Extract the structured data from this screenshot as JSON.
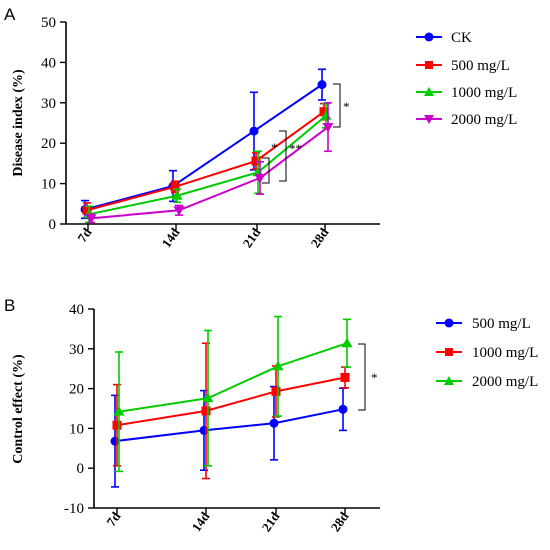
{
  "chart_data": [
    {
      "panel": "A",
      "type": "line",
      "ylabel": "Disease index (%)",
      "xlabel": "",
      "categories": [
        "7d",
        "14d",
        "21d",
        "28d"
      ],
      "ylim": [
        0,
        50
      ],
      "yticks": [
        0,
        10,
        20,
        30,
        40,
        50
      ],
      "grid": false,
      "legend_position": "right",
      "series": [
        {
          "name": "CK",
          "color": "#0000ff",
          "marker": "circle",
          "values": [
            3.6,
            9.4,
            23.0,
            34.5
          ],
          "errors": [
            2.2,
            3.8,
            9.6,
            3.8
          ]
        },
        {
          "name": "500 mg/L",
          "color": "#ff0000",
          "marker": "square",
          "values": [
            3.4,
            9.2,
            15.6,
            27.8
          ],
          "errors": [
            1.8,
            1.4,
            2.0,
            2.0
          ]
        },
        {
          "name": "1000 mg/L",
          "color": "#00cc00",
          "marker": "triangle-up",
          "values": [
            2.4,
            7.0,
            12.8,
            26.8
          ],
          "errors": [
            2.0,
            1.6,
            5.2,
            3.0
          ]
        },
        {
          "name": "2000 mg/L",
          "color": "#cc00cc",
          "marker": "triangle-down",
          "values": [
            1.4,
            3.4,
            11.4,
            24.0
          ],
          "errors": [
            1.0,
            1.2,
            4.0,
            6.0
          ]
        }
      ],
      "annotations": [
        "*",
        "*",
        "**",
        "*"
      ]
    },
    {
      "panel": "B",
      "type": "line",
      "ylabel": "Control effect (%)",
      "xlabel": "",
      "categories": [
        "7d",
        "14d",
        "21d",
        "28d"
      ],
      "ylim": [
        -10,
        40
      ],
      "yticks": [
        -10,
        0,
        10,
        20,
        30,
        40
      ],
      "grid": false,
      "legend_position": "right",
      "series": [
        {
          "name": "500 mg/L",
          "color": "#0000ff",
          "marker": "circle",
          "values": [
            6.8,
            9.5,
            11.3,
            14.8
          ],
          "errors": [
            11.5,
            10.0,
            9.2,
            5.3
          ]
        },
        {
          "name": "1000 mg/L",
          "color": "#ff0000",
          "marker": "square",
          "values": [
            10.8,
            14.4,
            19.3,
            22.8
          ],
          "errors": [
            10.2,
            17.0,
            6.4,
            2.6
          ]
        },
        {
          "name": "2000 mg/L",
          "color": "#00cc00",
          "marker": "triangle-up",
          "values": [
            14.2,
            17.6,
            25.6,
            31.4
          ],
          "errors": [
            15.0,
            17.0,
            12.5,
            6.0
          ]
        }
      ],
      "annotations": [
        "*"
      ]
    }
  ]
}
